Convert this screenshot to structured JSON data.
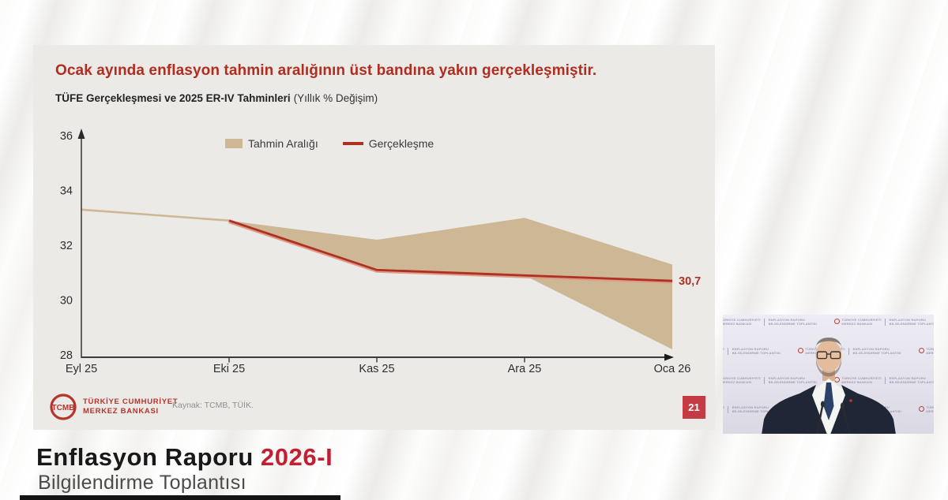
{
  "slide": {
    "title": "Ocak ayında enflasyon tahmin aralığının üst bandına yakın gerçekleşmiştir.",
    "subtitle_bold": "TÜFE Gerçekleşmesi ve 2025 ER-IV Tahminleri",
    "subtitle_normal": "(Yıllık % Değişim)",
    "source": "Kaynak: TCMB, TÜİK.",
    "page_number": "21",
    "logo_emblem": "TCMB",
    "logo_line1": "TÜRKİYE CUMHURİYET",
    "logo_line2": "MERKEZ BANKASI"
  },
  "chart_data": {
    "type": "area",
    "title": "TÜFE Gerçekleşmesi ve 2025 ER-IV Tahminleri",
    "subtitle": "Yıllık % Değişim",
    "categories": [
      "Eyl 25",
      "Eki 25",
      "Kas 25",
      "Ara 25",
      "Oca 26"
    ],
    "y_ticks": [
      36,
      34,
      32,
      30,
      28
    ],
    "ylim": [
      28,
      36
    ],
    "grid": false,
    "legend_position": "top-center",
    "series": [
      {
        "name": "Tahmin Aralığı",
        "type": "band",
        "color": "#cdb795",
        "upper": [
          33.3,
          32.9,
          32.2,
          33.0,
          31.3
        ],
        "lower": [
          33.3,
          32.9,
          31.15,
          30.9,
          28.2
        ]
      },
      {
        "name": "Gerçekleşme",
        "type": "line",
        "color": "#ae3122",
        "values": [
          null,
          32.9,
          31.1,
          30.9,
          30.7
        ]
      }
    ],
    "end_label": "30,7"
  },
  "banner": {
    "title_black": "Enflasyon Raporu",
    "title_red": "2026-I",
    "subtitle": "Bilgilendirme Toplantısı"
  },
  "video": {
    "backdrop_org_line1": "TÜRKİYE CUMHURİYETİ",
    "backdrop_org_line2": "MERKEZ BANKASI",
    "backdrop_event_line1": "ENFLASYON RAPORU",
    "backdrop_event_line2": "BİLGİLENDİRME TOPLANTISI"
  },
  "colors": {
    "title_red": "#b02d20",
    "band_tan": "#cdb795",
    "line_red": "#ae3122",
    "banner_red": "#c21f33",
    "badge_red": "#c43b44",
    "logo_red": "#b5342b"
  }
}
